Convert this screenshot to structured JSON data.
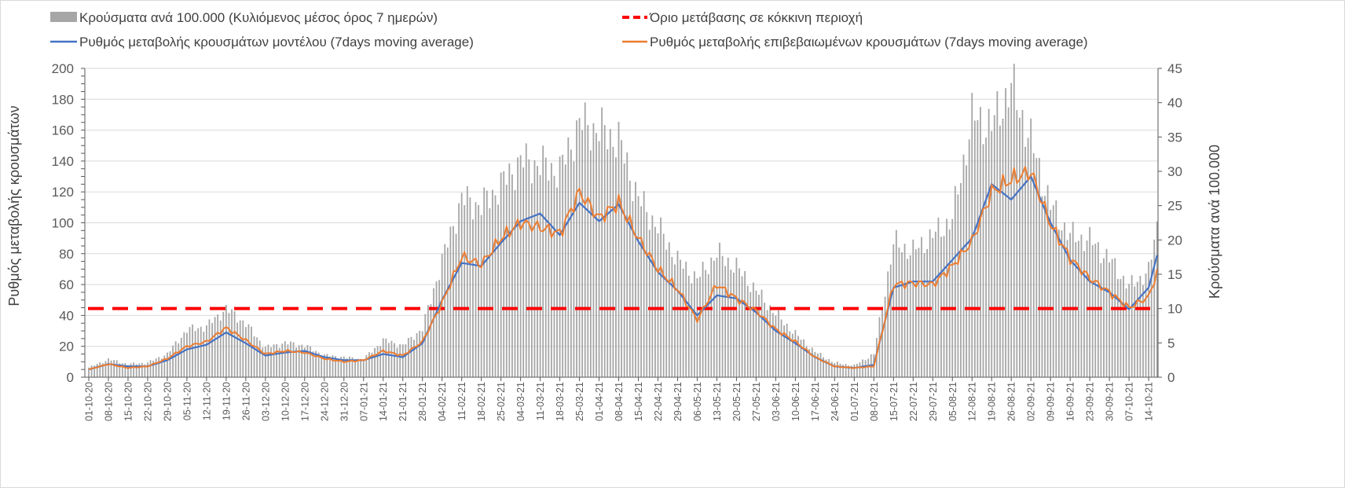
{
  "chart_data": {
    "type": "bar+line",
    "legend": {
      "bars": "Κρούσματα ανά 100.000 (Κυλιόμενος μέσος όρος 7 ημερών)",
      "threshold": "Όριο μετάβασης σε κόκκινη περιοχή",
      "model": "Ρυθμός μεταβολής κρουσμάτων μοντέλου (7days moving average)",
      "confirmed": "Ρυθμός μεταβολής επιβεβαιωμένων κρουσμάτων (7days moving average)"
    },
    "legend_placement": "top",
    "ylabel_left": "Ρυθμός μεταβολής κρουσμάτων",
    "ylabel_right": "Κρούσματα ανά 100.000",
    "ylim_left": [
      0,
      200
    ],
    "ylim_right": [
      0,
      45
    ],
    "yticks_left": [
      "0",
      "20",
      "40",
      "60",
      "80",
      "100",
      "120",
      "140",
      "160",
      "180",
      "200"
    ],
    "yticks_right": [
      "0",
      "5",
      "10",
      "15",
      "20",
      "25",
      "30",
      "35",
      "40",
      "45"
    ],
    "grid": true,
    "threshold_right_axis": 10,
    "colors": {
      "bars": "#a6a6a6",
      "threshold": "#ff0000",
      "model": "#4472c4",
      "confirmed": "#ed7d31"
    },
    "total_days": 382,
    "sample_days": [
      0,
      7,
      14,
      21,
      28,
      35,
      42,
      49,
      56,
      63,
      70,
      77,
      84,
      91,
      98,
      105,
      112,
      119,
      126,
      133,
      140,
      147,
      154,
      161,
      168,
      175,
      182,
      189,
      196,
      203,
      210,
      217,
      224,
      231,
      238,
      245,
      252,
      259,
      266,
      273,
      280,
      287,
      294,
      301,
      308,
      315,
      322,
      329,
      336,
      343,
      350,
      357,
      364,
      371,
      378,
      381
    ],
    "x_tick_labels": [
      "01-10-20",
      "08-10-20",
      "15-10-20",
      "22-10-20",
      "29-10-20",
      "05-11-20",
      "12-11-20",
      "19-11-20",
      "26-11-20",
      "03-12-20",
      "10-12-20",
      "17-12-20",
      "24-12-20",
      "31-12-20",
      "07-01-21",
      "14-01-21",
      "21-01-21",
      "28-01-21",
      "04-02-21",
      "11-02-21",
      "18-02-21",
      "25-02-21",
      "04-03-21",
      "11-03-21",
      "18-03-21",
      "25-03-21",
      "01-04-21",
      "08-04-21",
      "15-04-21",
      "22-04-21",
      "29-04-21",
      "06-05-21",
      "13-05-21",
      "20-05-21",
      "27-05-21",
      "03-06-21",
      "10-06-21",
      "17-06-21",
      "24-06-21",
      "01-07-21",
      "08-07-21",
      "15-07-21",
      "22-07-21",
      "29-07-21",
      "05-08-21",
      "12-08-21",
      "19-08-21",
      "26-08-21",
      "02-09-21",
      "09-09-21",
      "16-09-21",
      "23-09-21",
      "30-09-21",
      "07-10-21",
      "14-10-21"
    ],
    "series": [
      {
        "name": "bars_cases_per_100k",
        "axis": "right",
        "values": [
          1.4,
          2.6,
          1.9,
          2.1,
          3.4,
          6.9,
          7.4,
          10,
          7.8,
          4.3,
          5,
          4.6,
          3.2,
          2.9,
          2.6,
          5.4,
          4.6,
          7.1,
          17,
          26,
          25,
          28,
          31.5,
          31,
          30,
          37,
          36,
          34.5,
          26,
          21.8,
          17,
          14.3,
          18,
          16,
          12.6,
          9.2,
          6.3,
          3.7,
          2.1,
          1.7,
          3.4,
          19.5,
          18.3,
          20.6,
          23,
          37.8,
          36.6,
          42.4,
          34.4,
          25,
          20.6,
          20,
          17.2,
          13.2,
          15.4,
          21.8
        ]
      },
      {
        "name": "model",
        "axis": "left",
        "values": [
          5,
          8.5,
          7,
          7,
          11,
          18,
          21,
          29,
          22,
          14,
          16,
          17,
          13,
          11,
          11,
          15,
          13,
          22,
          50,
          74,
          72,
          87,
          101,
          106,
          92,
          113,
          101,
          112,
          88,
          68,
          56,
          40,
          53,
          51,
          42,
          30,
          22,
          13,
          7,
          6,
          8,
          58,
          62,
          62,
          76,
          90,
          125,
          115,
          130,
          100,
          76,
          62,
          55,
          44,
          58,
          79
        ]
      },
      {
        "name": "confirmed",
        "axis": "left",
        "values": [
          5,
          8.5,
          6,
          7,
          12,
          20,
          23,
          32,
          24,
          15,
          17,
          16,
          12,
          10,
          11,
          17,
          14,
          23,
          48,
          78,
          73,
          90,
          100,
          97,
          93,
          120,
          103,
          113,
          90,
          70,
          57,
          37,
          60,
          51,
          43,
          31,
          23,
          13,
          7,
          6,
          7,
          60,
          61,
          60,
          72,
          88,
          120,
          128,
          133,
          99,
          77,
          64,
          55,
          45,
          52,
          68
        ]
      }
    ]
  }
}
